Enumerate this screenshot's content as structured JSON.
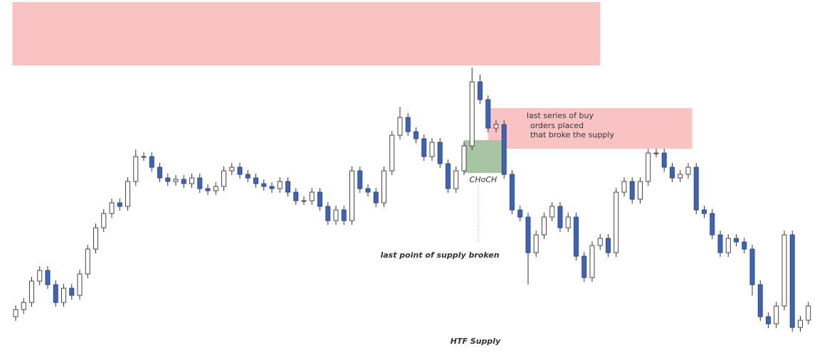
{
  "chart_data": {
    "type": "candlestick",
    "up_color": "#ffffff",
    "down_color": "#3f63b5",
    "ylim": [
      0,
      500
    ],
    "open": [
      55,
      65,
      75,
      105,
      120,
      100,
      75,
      95,
      85,
      115,
      150,
      180,
      200,
      215,
      210,
      245,
      280,
      280,
      265,
      250,
      245,
      248,
      242,
      250,
      235,
      232,
      238,
      260,
      265,
      255,
      250,
      242,
      238,
      235,
      245,
      230,
      218,
      218,
      230,
      210,
      190,
      205,
      190,
      260,
      235,
      230,
      215,
      260,
      310,
      335,
      315,
      305,
      280,
      300,
      270,
      235,
      260,
      295,
      385,
      360,
      320,
      325,
      255,
      205,
      195,
      145,
      170,
      195,
      210,
      180,
      195,
      140,
      110,
      155,
      165,
      145,
      230,
      245,
      220,
      245,
      285,
      285,
      265,
      250,
      255,
      265,
      205,
      200,
      170,
      145,
      165,
      160,
      150,
      100,
      55,
      45,
      70,
      170,
      40,
      50
    ],
    "high": [
      71,
      81,
      111,
      126,
      126,
      106,
      101,
      101,
      121,
      156,
      186,
      206,
      221,
      221,
      251,
      290,
      286,
      286,
      271,
      256,
      254,
      254,
      256,
      256,
      241,
      244,
      266,
      271,
      271,
      261,
      256,
      248,
      244,
      251,
      251,
      236,
      224,
      236,
      236,
      216,
      211,
      211,
      266,
      266,
      241,
      236,
      266,
      316,
      350,
      341,
      321,
      311,
      306,
      306,
      276,
      266,
      301,
      405,
      395,
      366,
      331,
      331,
      261,
      211,
      201,
      176,
      201,
      216,
      216,
      201,
      201,
      146,
      161,
      171,
      171,
      236,
      251,
      251,
      251,
      291,
      291,
      291,
      271,
      261,
      271,
      271,
      211,
      206,
      176,
      171,
      171,
      166,
      156,
      106,
      61,
      76,
      176,
      176,
      56,
      76
    ],
    "low": [
      49,
      59,
      69,
      99,
      94,
      69,
      69,
      79,
      79,
      109,
      144,
      174,
      194,
      204,
      204,
      239,
      274,
      259,
      244,
      239,
      239,
      236,
      236,
      229,
      226,
      226,
      232,
      254,
      249,
      244,
      236,
      232,
      229,
      229,
      224,
      212,
      212,
      212,
      204,
      184,
      184,
      184,
      184,
      229,
      224,
      209,
      209,
      254,
      304,
      309,
      299,
      274,
      274,
      264,
      229,
      229,
      254,
      289,
      354,
      314,
      314,
      249,
      199,
      189,
      100,
      139,
      164,
      189,
      174,
      174,
      134,
      104,
      104,
      149,
      139,
      139,
      224,
      214,
      214,
      239,
      279,
      259,
      244,
      244,
      249,
      199,
      194,
      164,
      139,
      139,
      154,
      144,
      85,
      49,
      39,
      39,
      64,
      34,
      34,
      44
    ],
    "close": [
      65,
      75,
      105,
      120,
      100,
      75,
      95,
      85,
      115,
      150,
      180,
      200,
      215,
      210,
      245,
      280,
      280,
      265,
      250,
      245,
      248,
      242,
      250,
      235,
      232,
      238,
      260,
      265,
      255,
      250,
      242,
      238,
      235,
      245,
      230,
      218,
      218,
      230,
      210,
      190,
      205,
      190,
      260,
      235,
      230,
      215,
      260,
      310,
      335,
      315,
      305,
      280,
      300,
      270,
      235,
      260,
      295,
      385,
      360,
      320,
      325,
      255,
      205,
      195,
      145,
      170,
      195,
      210,
      180,
      195,
      140,
      110,
      155,
      165,
      145,
      230,
      245,
      220,
      245,
      285,
      285,
      265,
      250,
      255,
      265,
      205,
      200,
      170,
      145,
      165,
      160,
      150,
      100,
      55,
      45,
      70,
      170,
      40,
      50,
      70
    ],
    "zones": [
      {
        "from": -0.4,
        "to": 73,
        "top": 497,
        "bottom": 408,
        "color": "#fac3c3"
      },
      {
        "from": 59,
        "to": 84.5,
        "top": 348,
        "bottom": 291,
        "color": "#fac3c3"
      },
      {
        "from": 56,
        "to": 60.7,
        "top": 303,
        "bottom": 257,
        "color": "#a7c5a2"
      }
    ],
    "annotations": [
      "last series of buy",
      "orders placed",
      "that broke the supply",
      "CHoCH",
      "last point of supply broken",
      "HTF Supply"
    ]
  }
}
